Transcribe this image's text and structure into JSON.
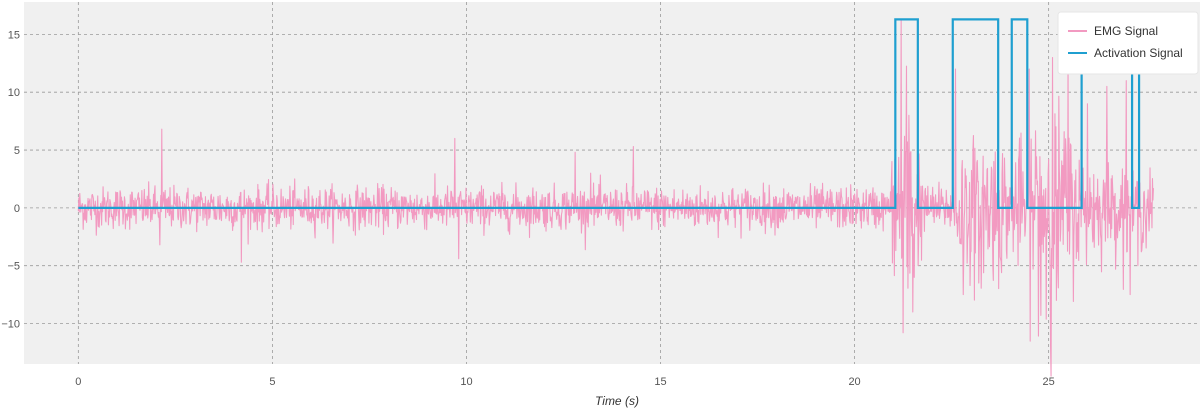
{
  "chart_data": {
    "type": "line",
    "xlabel": "Time (s)",
    "ylabel": "",
    "xlim": [
      -1.4,
      28.9
    ],
    "ylim": [
      -13.5,
      17.8
    ],
    "x_ticks": [
      0,
      5,
      10,
      15,
      20,
      25
    ],
    "y_ticks": [
      -10,
      -5,
      0,
      5,
      10,
      15
    ],
    "grid": true,
    "legend_position": "top-right",
    "background": "#f0f0f0",
    "series": [
      {
        "name": "EMG Signal",
        "color": "#f29ac1",
        "kind": "noise-envelope",
        "duration": 27.7,
        "sample_rate": 80,
        "envelope": [
          [
            0,
            1.2
          ],
          [
            20.9,
            1.2
          ],
          [
            21.0,
            3.5
          ],
          [
            21.3,
            8.0
          ],
          [
            21.6,
            5.0
          ],
          [
            21.8,
            1.3
          ],
          [
            22.5,
            1.3
          ],
          [
            22.6,
            4.0
          ],
          [
            23.0,
            4.0
          ],
          [
            23.7,
            4.5
          ],
          [
            24.0,
            2.5
          ],
          [
            24.4,
            4.5
          ],
          [
            24.8,
            6.5
          ],
          [
            25.2,
            6.0
          ],
          [
            25.9,
            3.0
          ],
          [
            26.5,
            2.5
          ],
          [
            27.2,
            2.5
          ],
          [
            27.7,
            2.0
          ]
        ],
        "spikes": [
          {
            "x": 2.15,
            "y": 6.8
          },
          {
            "x": 2.1,
            "y": -3.2
          },
          {
            "x": 4.2,
            "y": -4.7
          },
          {
            "x": 9.7,
            "y": 6.0
          },
          {
            "x": 9.8,
            "y": -4.4
          },
          {
            "x": 12.8,
            "y": 4.8
          },
          {
            "x": 13.2,
            "y": 3.0
          },
          {
            "x": 14.3,
            "y": 5.3
          },
          {
            "x": 21.2,
            "y": 16.3
          },
          {
            "x": 21.25,
            "y": -10.8
          },
          {
            "x": 21.5,
            "y": -9.0
          },
          {
            "x": 21.4,
            "y": 8.0
          },
          {
            "x": 22.6,
            "y": 12.0
          },
          {
            "x": 22.8,
            "y": -7.5
          },
          {
            "x": 23.2,
            "y": -6.5
          },
          {
            "x": 23.7,
            "y": 9.5
          },
          {
            "x": 24.5,
            "y": 12.0
          },
          {
            "x": 24.8,
            "y": -9.3
          },
          {
            "x": 25.1,
            "y": 13.0
          },
          {
            "x": 25.05,
            "y": -12.0
          },
          {
            "x": 25.2,
            "y": -8.0
          },
          {
            "x": 25.5,
            "y": 13.0
          },
          {
            "x": 26.0,
            "y": 9.0
          },
          {
            "x": 26.5,
            "y": 10.5
          },
          {
            "x": 27.0,
            "y": 11.0
          },
          {
            "x": 27.1,
            "y": -7.5
          },
          {
            "x": 27.3,
            "y": -5.0
          }
        ]
      },
      {
        "name": "Activation Signal",
        "color": "#1f9fd0",
        "kind": "step",
        "x": [
          0,
          21.05,
          21.05,
          21.63,
          21.63,
          22.53,
          22.53,
          23.7,
          23.7,
          24.05,
          24.05,
          24.45,
          24.45,
          25.85,
          25.85,
          27.15,
          27.15,
          27.33,
          27.33,
          27.7
        ],
        "y": [
          0,
          0,
          16.3,
          16.3,
          0,
          0,
          16.3,
          16.3,
          0,
          0,
          16.3,
          16.3,
          0,
          0,
          16.3,
          16.3,
          0,
          0,
          16.3,
          16.3
        ]
      }
    ]
  }
}
